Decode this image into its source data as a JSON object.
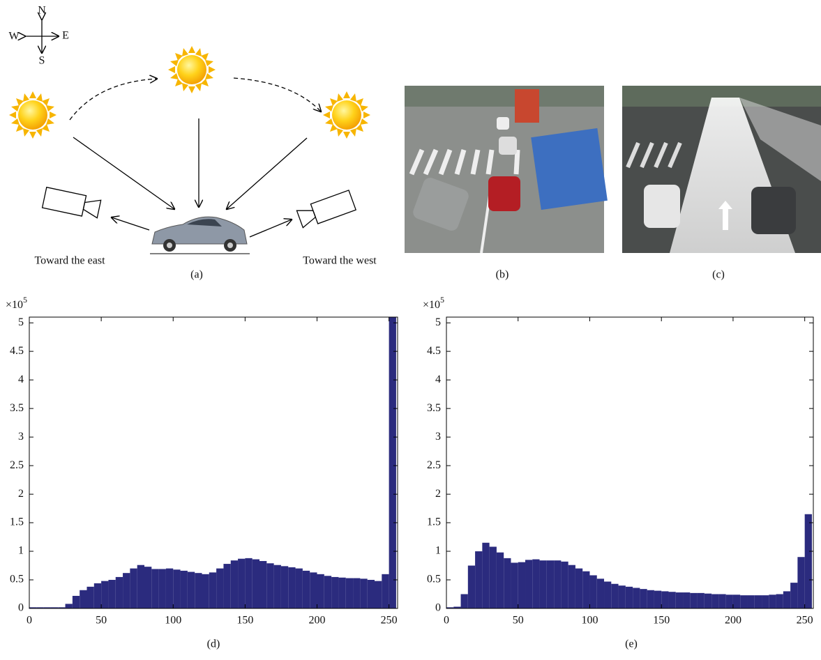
{
  "figure_a": {
    "compass": {
      "north": "N",
      "south": "S",
      "west": "W",
      "east": "E"
    },
    "left_label": "Toward the east",
    "right_label": "Toward the west",
    "caption": "(a)"
  },
  "photo_b": {
    "caption": "(b)"
  },
  "photo_c": {
    "caption": "(c)"
  },
  "chart_data": [
    {
      "type": "histogram",
      "caption": "(d)",
      "y_multiplier": "×10",
      "y_multiplier_exponent": "5",
      "bins": [
        0,
        5,
        10,
        15,
        20,
        25,
        30,
        35,
        40,
        45,
        50,
        55,
        60,
        65,
        70,
        75,
        80,
        85,
        90,
        95,
        100,
        105,
        110,
        115,
        120,
        125,
        130,
        135,
        140,
        145,
        150,
        155,
        160,
        165,
        170,
        175,
        180,
        185,
        190,
        195,
        200,
        205,
        210,
        215,
        220,
        225,
        230,
        235,
        240,
        245,
        250,
        255
      ],
      "values": [
        0.02,
        0.02,
        0.02,
        0.02,
        0.02,
        0.08,
        0.22,
        0.32,
        0.38,
        0.44,
        0.48,
        0.5,
        0.55,
        0.62,
        0.7,
        0.76,
        0.73,
        0.69,
        0.69,
        0.7,
        0.68,
        0.66,
        0.64,
        0.62,
        0.6,
        0.63,
        0.7,
        0.78,
        0.84,
        0.87,
        0.88,
        0.86,
        0.83,
        0.79,
        0.76,
        0.74,
        0.72,
        0.7,
        0.66,
        0.63,
        0.6,
        0.57,
        0.55,
        0.54,
        0.53,
        0.53,
        0.52,
        0.5,
        0.48,
        0.6,
        5.1
      ],
      "color": "#2b2b7e",
      "xlim": [
        0,
        256
      ],
      "ylim": [
        0,
        5.1
      ],
      "xticks": [
        0,
        50,
        100,
        150,
        200,
        250
      ],
      "yticks": [
        0,
        0.5,
        1,
        1.5,
        2,
        2.5,
        3,
        3.5,
        4,
        4.5,
        5
      ],
      "grid": false
    },
    {
      "type": "histogram",
      "caption": "(e)",
      "y_multiplier": "×10",
      "y_multiplier_exponent": "5",
      "bins": [
        0,
        5,
        10,
        15,
        20,
        25,
        30,
        35,
        40,
        45,
        50,
        55,
        60,
        65,
        70,
        75,
        80,
        85,
        90,
        95,
        100,
        105,
        110,
        115,
        120,
        125,
        130,
        135,
        140,
        145,
        150,
        155,
        160,
        165,
        170,
        175,
        180,
        185,
        190,
        195,
        200,
        205,
        210,
        215,
        220,
        225,
        230,
        235,
        240,
        245,
        250,
        255
      ],
      "values": [
        0.02,
        0.03,
        0.25,
        0.75,
        1.0,
        1.15,
        1.08,
        0.98,
        0.88,
        0.8,
        0.81,
        0.85,
        0.86,
        0.84,
        0.84,
        0.84,
        0.82,
        0.76,
        0.7,
        0.65,
        0.58,
        0.52,
        0.47,
        0.43,
        0.4,
        0.38,
        0.36,
        0.34,
        0.32,
        0.31,
        0.3,
        0.29,
        0.28,
        0.28,
        0.27,
        0.27,
        0.26,
        0.25,
        0.25,
        0.24,
        0.24,
        0.23,
        0.23,
        0.23,
        0.23,
        0.24,
        0.25,
        0.3,
        0.45,
        0.9,
        1.65
      ],
      "color": "#2b2b7e",
      "xlim": [
        0,
        256
      ],
      "ylim": [
        0,
        5.1
      ],
      "xticks": [
        0,
        50,
        100,
        150,
        200,
        250
      ],
      "yticks": [
        0,
        0.5,
        1,
        1.5,
        2,
        2.5,
        3,
        3.5,
        4,
        4.5,
        5
      ],
      "grid": false
    }
  ]
}
